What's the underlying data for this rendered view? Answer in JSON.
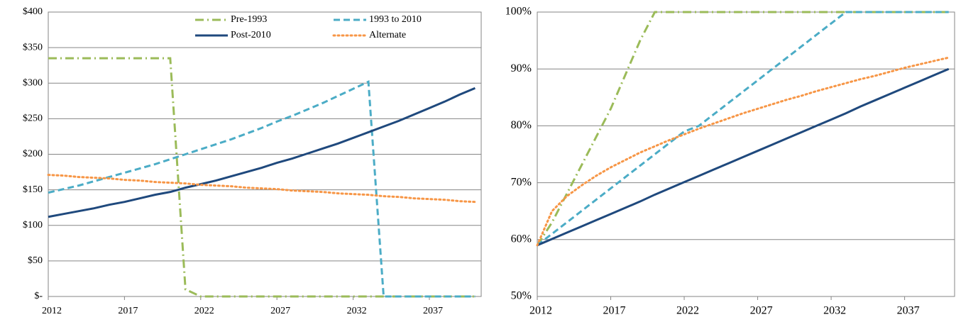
{
  "chart_data": [
    {
      "type": "line",
      "x": [
        2012,
        2013,
        2014,
        2015,
        2016,
        2017,
        2018,
        2019,
        2020,
        2021,
        2022,
        2023,
        2024,
        2025,
        2026,
        2027,
        2028,
        2029,
        2030,
        2031,
        2032,
        2033,
        2034,
        2035,
        2036,
        2037,
        2038,
        2039,
        2040
      ],
      "xlim": [
        2012,
        2040.4
      ],
      "xticks": [
        2012,
        2017,
        2022,
        2027,
        2032,
        2037
      ],
      "ylim": [
        0,
        400
      ],
      "yticks": [
        {
          "value": 0,
          "label": "$-"
        },
        {
          "value": 50,
          "label": "$50"
        },
        {
          "value": 100,
          "label": "$100"
        },
        {
          "value": 150,
          "label": "$150"
        },
        {
          "value": 200,
          "label": "$200"
        },
        {
          "value": 250,
          "label": "$250"
        },
        {
          "value": 300,
          "label": "$300"
        },
        {
          "value": 350,
          "label": "$350"
        },
        {
          "value": 400,
          "label": "$400"
        }
      ],
      "grid": true,
      "legend": "top",
      "series": [
        {
          "name": "Pre-1993",
          "color": "#9bbb59",
          "dash": "dashdot",
          "values": [
            335,
            335,
            335,
            335,
            335,
            335,
            335,
            335,
            335,
            10,
            0,
            0,
            0,
            0,
            0,
            0,
            0,
            0,
            0,
            0,
            0,
            0,
            0,
            0,
            0,
            0,
            0,
            0,
            0
          ]
        },
        {
          "name": "1993 to 2010",
          "color": "#4bacc6",
          "dash": "dash",
          "values": [
            146,
            151,
            156,
            162,
            168,
            174,
            180,
            186,
            193,
            200,
            207,
            214,
            221,
            229,
            237,
            246,
            254,
            263,
            272,
            282,
            292,
            302,
            0,
            0,
            0,
            0,
            0,
            0,
            0
          ]
        },
        {
          "name": "Post-2010",
          "color": "#1f497d",
          "dash": "solid",
          "values": [
            112,
            116,
            120,
            124,
            129,
            133,
            138,
            143,
            147,
            153,
            158,
            163,
            169,
            175,
            181,
            188,
            194,
            201,
            208,
            215,
            223,
            231,
            239,
            247,
            256,
            265,
            274,
            284,
            293
          ]
        },
        {
          "name": "Alternate",
          "color": "#f79646",
          "dash": "dot",
          "values": [
            171,
            170,
            168,
            167,
            166,
            164,
            163,
            161,
            160,
            159,
            157,
            156,
            155,
            153,
            152,
            151,
            149,
            148,
            147,
            145,
            144,
            143,
            141,
            140,
            138,
            137,
            136,
            134,
            133
          ]
        }
      ]
    },
    {
      "type": "line",
      "x": [
        2012,
        2013,
        2014,
        2015,
        2016,
        2017,
        2018,
        2019,
        2020,
        2021,
        2022,
        2023,
        2024,
        2025,
        2026,
        2027,
        2028,
        2029,
        2030,
        2031,
        2032,
        2033,
        2034,
        2035,
        2036,
        2037,
        2038,
        2039,
        2040
      ],
      "xlim": [
        2012,
        2040.4
      ],
      "xticks": [
        2012,
        2017,
        2022,
        2027,
        2032,
        2037
      ],
      "ylim": [
        50,
        100
      ],
      "yticks": [
        {
          "value": 50,
          "label": "50%"
        },
        {
          "value": 60,
          "label": "60%"
        },
        {
          "value": 70,
          "label": "70%"
        },
        {
          "value": 80,
          "label": "80%"
        },
        {
          "value": 90,
          "label": "90%"
        },
        {
          "value": 100,
          "label": "100%"
        }
      ],
      "grid": true,
      "series": [
        {
          "color": "#9bbb59",
          "dash": "dashdot",
          "values": [
            59,
            63,
            68,
            73,
            78,
            83,
            89,
            95,
            100,
            100,
            100,
            100,
            100,
            100,
            100,
            100,
            100,
            100,
            100,
            100,
            100,
            100,
            100,
            100,
            100,
            100,
            100,
            100,
            100
          ]
        },
        {
          "color": "#4bacc6",
          "dash": "dash",
          "values": [
            59,
            61,
            63,
            65,
            67,
            69,
            71,
            73,
            75,
            77,
            79,
            80,
            82,
            84,
            86,
            88,
            90,
            92,
            94,
            96,
            98,
            100,
            100,
            100,
            100,
            100,
            100,
            100,
            100
          ]
        },
        {
          "color": "#1f497d",
          "dash": "solid",
          "values": [
            59,
            60.1,
            61.2,
            62.3,
            63.4,
            64.5,
            65.6,
            66.7,
            67.9,
            69,
            70.1,
            71.2,
            72.3,
            73.4,
            74.5,
            75.6,
            76.7,
            77.8,
            78.9,
            80,
            81.1,
            82.2,
            83.4,
            84.5,
            85.6,
            86.7,
            87.8,
            88.9,
            90
          ]
        },
        {
          "color": "#f79646",
          "dash": "dot",
          "values": [
            59,
            65,
            67.6,
            69.5,
            71.2,
            72.7,
            74,
            75.3,
            76.4,
            77.5,
            78.5,
            79.5,
            80.4,
            81.3,
            82.2,
            83,
            83.8,
            84.6,
            85.3,
            86.1,
            86.8,
            87.5,
            88.2,
            88.8,
            89.5,
            90.2,
            90.8,
            91.4,
            92
          ]
        }
      ]
    }
  ]
}
